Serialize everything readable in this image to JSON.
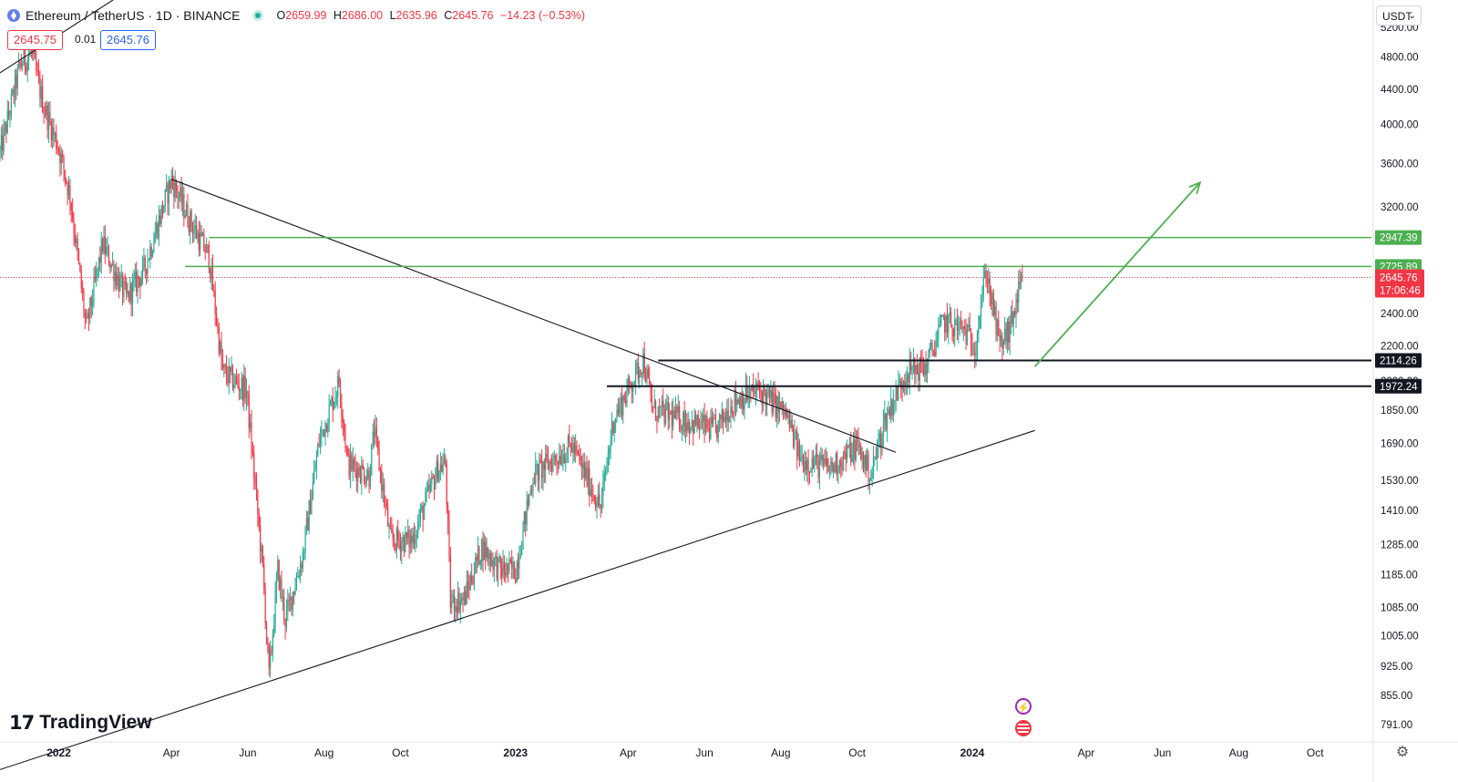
{
  "header": {
    "symbol": "Ethereum / TetherUS · 1D · BINANCE",
    "o_label": "O",
    "o": "2659.99",
    "h_label": "H",
    "h": "2686.00",
    "l_label": "L",
    "l": "2635.96",
    "c_label": "C",
    "c": "2645.76",
    "change": "−14.23 (−0.53%)"
  },
  "trade": {
    "sell": "2645.75",
    "spread": "0.01",
    "buy": "2645.76"
  },
  "currency": "USDT",
  "branding": {
    "name": "TradingView"
  },
  "colors": {
    "up": "#22ab94",
    "down": "#f23645",
    "level_green": "#4caf50",
    "level_black": "#131722",
    "last": "#f23645"
  },
  "chart_data": {
    "type": "candlestick",
    "title": "Ethereum / TetherUS · 1D · BINANCE",
    "y_scale": "log",
    "ylim": [
      760,
      5600
    ],
    "xlim": [
      "2021-11-15",
      "2024-11-15"
    ],
    "y_ticks": [
      5200,
      4800,
      4400,
      4000,
      3600,
      3200,
      2400,
      2200,
      1850,
      1690,
      1530,
      1410,
      1285,
      1185,
      1085,
      1005,
      925,
      855,
      791
    ],
    "x_ticks": [
      {
        "date": "2022-01-01",
        "label": "2022",
        "bold": true
      },
      {
        "date": "2022-04-01",
        "label": "Apr"
      },
      {
        "date": "2022-06-01",
        "label": "Jun"
      },
      {
        "date": "2022-08-01",
        "label": "Aug"
      },
      {
        "date": "2022-10-01",
        "label": "Oct"
      },
      {
        "date": "2023-01-01",
        "label": "2023",
        "bold": true
      },
      {
        "date": "2023-04-01",
        "label": "Apr"
      },
      {
        "date": "2023-06-01",
        "label": "Jun"
      },
      {
        "date": "2023-08-01",
        "label": "Aug"
      },
      {
        "date": "2023-10-01",
        "label": "Oct"
      },
      {
        "date": "2024-01-01",
        "label": "2024",
        "bold": true
      },
      {
        "date": "2024-04-01",
        "label": "Apr"
      },
      {
        "date": "2024-06-01",
        "label": "Jun"
      },
      {
        "date": "2024-08-01",
        "label": "Aug"
      },
      {
        "date": "2024-10-01",
        "label": "Oct"
      }
    ],
    "price_path": [
      [
        "2021-11-15",
        3700
      ],
      [
        "2021-12-01",
        4700
      ],
      [
        "2021-12-10",
        4850
      ],
      [
        "2021-12-20",
        4200
      ],
      [
        "2022-01-01",
        3750
      ],
      [
        "2022-01-10",
        3300
      ],
      [
        "2022-01-23",
        2300
      ],
      [
        "2022-02-05",
        2900
      ],
      [
        "2022-02-24",
        2500
      ],
      [
        "2022-03-10",
        2700
      ],
      [
        "2022-04-01",
        3450
      ],
      [
        "2022-04-15",
        3100
      ],
      [
        "2022-05-01",
        2800
      ],
      [
        "2022-05-12",
        2050
      ],
      [
        "2022-05-31",
        1950
      ],
      [
        "2022-06-13",
        1200
      ],
      [
        "2022-06-18",
        900
      ],
      [
        "2022-06-25",
        1200
      ],
      [
        "2022-07-01",
        1050
      ],
      [
        "2022-07-15",
        1250
      ],
      [
        "2022-07-28",
        1700
      ],
      [
        "2022-08-13",
        2000
      ],
      [
        "2022-08-20",
        1600
      ],
      [
        "2022-09-06",
        1550
      ],
      [
        "2022-09-10",
        1750
      ],
      [
        "2022-09-23",
        1300
      ],
      [
        "2022-10-10",
        1300
      ],
      [
        "2022-10-31",
        1580
      ],
      [
        "2022-11-06",
        1600
      ],
      [
        "2022-11-10",
        1100
      ],
      [
        "2022-11-21",
        1110
      ],
      [
        "2022-12-05",
        1280
      ],
      [
        "2022-12-20",
        1200
      ],
      [
        "2023-01-01",
        1200
      ],
      [
        "2023-01-15",
        1550
      ],
      [
        "2023-02-15",
        1680
      ],
      [
        "2023-03-10",
        1420
      ],
      [
        "2023-03-20",
        1800
      ],
      [
        "2023-04-13",
        2120
      ],
      [
        "2023-04-21",
        1850
      ],
      [
        "2023-05-15",
        1800
      ],
      [
        "2023-06-10",
        1750
      ],
      [
        "2023-06-25",
        1900
      ],
      [
        "2023-07-15",
        1950
      ],
      [
        "2023-08-05",
        1830
      ],
      [
        "2023-08-17",
        1620
      ],
      [
        "2023-09-10",
        1580
      ],
      [
        "2023-10-01",
        1680
      ],
      [
        "2023-10-12",
        1550
      ],
      [
        "2023-10-23",
        1800
      ],
      [
        "2023-11-09",
        2050
      ],
      [
        "2023-11-25",
        2080
      ],
      [
        "2023-12-09",
        2350
      ],
      [
        "2023-12-25",
        2300
      ],
      [
        "2024-01-03",
        2200
      ],
      [
        "2024-01-12",
        2700
      ],
      [
        "2024-01-23",
        2200
      ],
      [
        "2024-01-31",
        2300
      ],
      [
        "2024-02-10",
        2646
      ]
    ],
    "trendlines": [
      {
        "name": "upper channel",
        "points": [
          [
            "2021-11-15",
            4600
          ],
          [
            "2022-04-01",
            6200
          ]
        ]
      },
      {
        "name": "descending resistance",
        "points": [
          [
            "2022-04-01",
            3450
          ],
          [
            "2023-11-01",
            1650
          ]
        ]
      },
      {
        "name": "ascending support",
        "points": [
          [
            "2021-11-15",
            700
          ],
          [
            "2024-02-20",
            1750
          ]
        ]
      }
    ],
    "horizontal_levels": [
      {
        "value": 2947.39,
        "label": "2947.39",
        "color": "#4caf50",
        "start": "2022-05-01"
      },
      {
        "value": 2725.89,
        "label": "2725.89",
        "color": "#4caf50",
        "start": "2022-04-12"
      },
      {
        "value": 2114.26,
        "label": "2114.26",
        "color": "#131722",
        "start": "2023-04-25"
      },
      {
        "value": 1972.24,
        "label": "1972.24",
        "color": "#131722",
        "start": "2023-03-15"
      }
    ],
    "projection_arrow": {
      "from": [
        "2024-02-20",
        2080
      ],
      "to": [
        "2024-07-01",
        3420
      ]
    },
    "last_price": {
      "value": 2645.76,
      "label": "2645.76",
      "countdown": "17:06:46"
    },
    "hidden_tick_behind_label": "2000.00"
  }
}
